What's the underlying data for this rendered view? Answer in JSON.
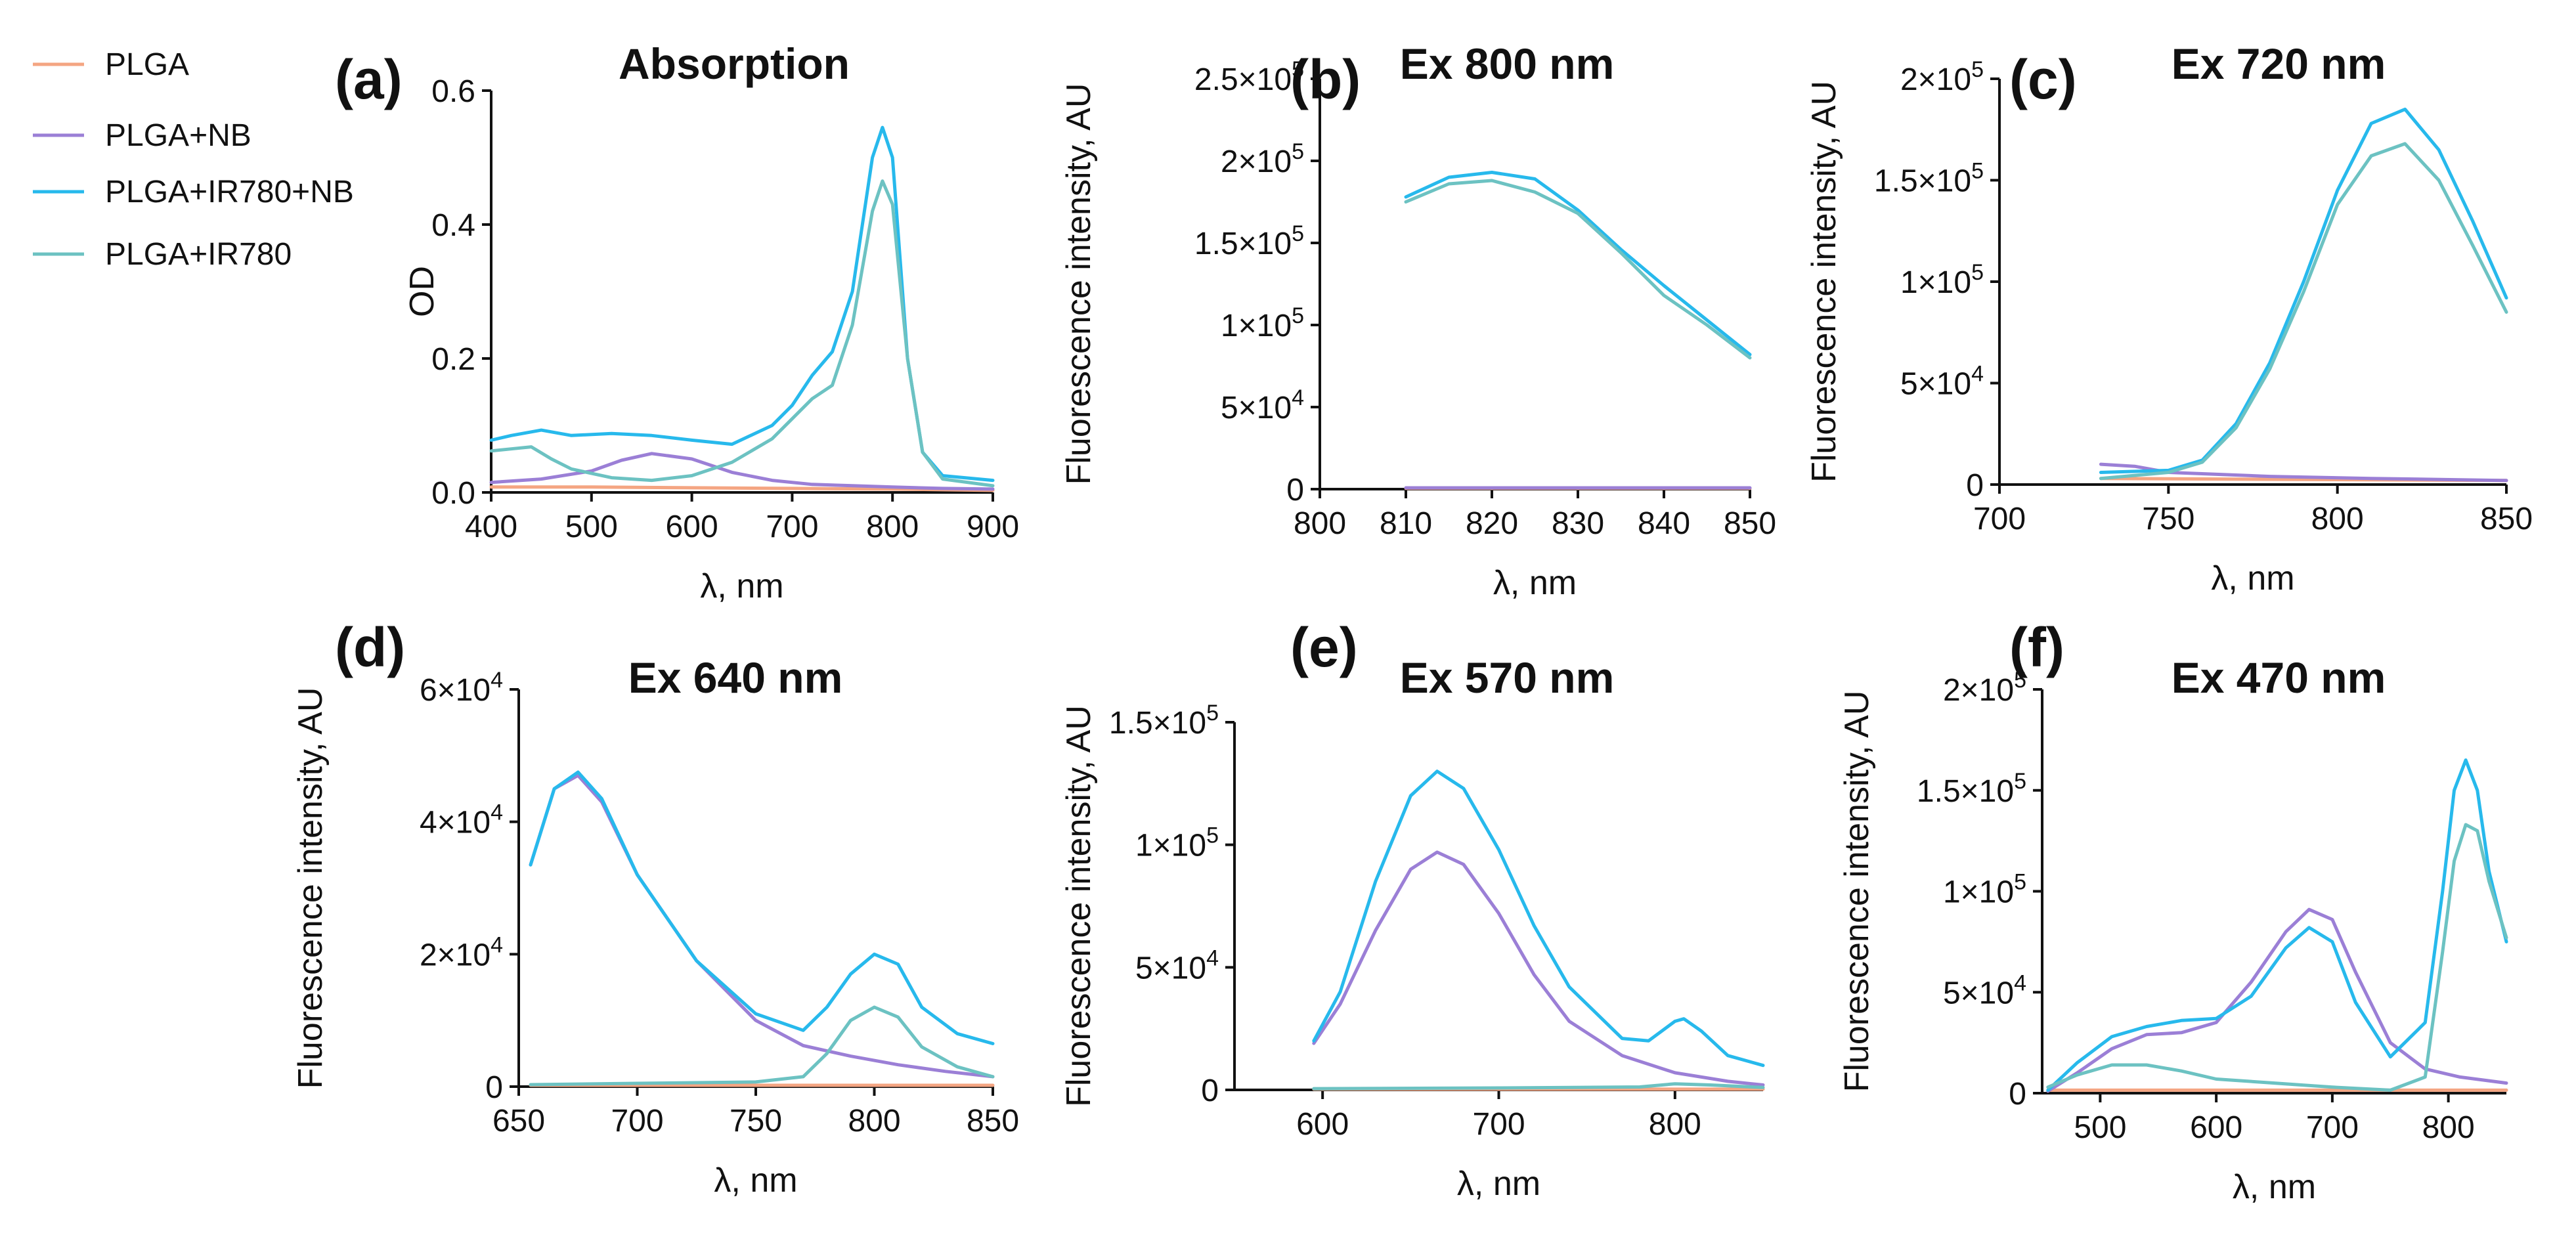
{
  "legend": [
    {
      "label": "PLGA",
      "color": "#f4a582"
    },
    {
      "label": "PLGA+NB",
      "color": "#9b7fd6"
    },
    {
      "label": "PLGA+IR780+NB",
      "color": "#27b9ec"
    },
    {
      "label": "PLGA+IR780",
      "color": "#6cc2c2"
    }
  ],
  "chart_data": [
    {
      "id": "a",
      "panel_label": "(a)",
      "title": "Absorption",
      "type": "line",
      "xlabel": "λ, nm",
      "ylabel": "OD",
      "xlim": [
        400,
        900
      ],
      "ylim": [
        0,
        0.6
      ],
      "xticks": [
        "400",
        "500",
        "600",
        "700",
        "800",
        "900"
      ],
      "yticks": [
        "0.0",
        "0.2",
        "0.4",
        "0.6"
      ],
      "series": [
        {
          "name": "PLGA",
          "x": [
            400,
            500,
            600,
            700,
            800,
            900
          ],
          "y": [
            0.008,
            0.008,
            0.007,
            0.006,
            0.005,
            0.003
          ]
        },
        {
          "name": "PLGA+NB",
          "x": [
            400,
            450,
            500,
            530,
            560,
            600,
            640,
            680,
            720,
            760,
            800,
            850,
            900
          ],
          "y": [
            0.015,
            0.02,
            0.032,
            0.048,
            0.058,
            0.05,
            0.03,
            0.018,
            0.012,
            0.01,
            0.008,
            0.006,
            0.005
          ]
        },
        {
          "name": "PLGA+IR780+NB",
          "x": [
            400,
            420,
            450,
            480,
            520,
            560,
            600,
            640,
            680,
            700,
            720,
            740,
            760,
            780,
            790,
            800,
            815,
            830,
            850,
            900
          ],
          "y": [
            0.078,
            0.085,
            0.093,
            0.085,
            0.088,
            0.085,
            0.078,
            0.072,
            0.1,
            0.13,
            0.175,
            0.21,
            0.3,
            0.5,
            0.545,
            0.5,
            0.2,
            0.06,
            0.025,
            0.018
          ]
        },
        {
          "name": "PLGA+IR780",
          "x": [
            400,
            420,
            440,
            460,
            480,
            520,
            560,
            600,
            640,
            680,
            700,
            720,
            740,
            760,
            780,
            790,
            800,
            815,
            830,
            850,
            900
          ],
          "y": [
            0.062,
            0.065,
            0.068,
            0.05,
            0.035,
            0.022,
            0.018,
            0.025,
            0.045,
            0.08,
            0.11,
            0.14,
            0.16,
            0.25,
            0.42,
            0.465,
            0.43,
            0.2,
            0.06,
            0.02,
            0.01
          ]
        }
      ]
    },
    {
      "id": "b",
      "panel_label": "(b)",
      "title": "Ex 800 nm",
      "type": "line",
      "xlabel": "λ, nm",
      "ylabel": "Fluorescence intensity, AU",
      "xlim": [
        800,
        850
      ],
      "ylim": [
        0,
        250000
      ],
      "xticks": [
        "800",
        "810",
        "820",
        "830",
        "840",
        "850"
      ],
      "yticks": [
        "0",
        "5×10",
        "1×10",
        "1.5×10",
        "2×10",
        "2.5×10"
      ],
      "ytick_exponents": [
        "",
        "4",
        "5",
        "5",
        "5",
        "5"
      ],
      "series": [
        {
          "name": "PLGA",
          "x": [
            810,
            850
          ],
          "y": [
            500,
            500
          ]
        },
        {
          "name": "PLGA+NB",
          "x": [
            810,
            850
          ],
          "y": [
            800,
            800
          ]
        },
        {
          "name": "PLGA+IR780+NB",
          "x": [
            810,
            815,
            820,
            825,
            830,
            835,
            840,
            845,
            850
          ],
          "y": [
            178000,
            190000,
            193000,
            189000,
            170000,
            146000,
            124000,
            103000,
            82000
          ]
        },
        {
          "name": "PLGA+IR780",
          "x": [
            810,
            815,
            820,
            825,
            830,
            835,
            840,
            845,
            850
          ],
          "y": [
            175000,
            186000,
            188000,
            181000,
            168000,
            144000,
            118000,
            100000,
            80000
          ]
        }
      ]
    },
    {
      "id": "c",
      "panel_label": "(c)",
      "title": "Ex 720 nm",
      "type": "line",
      "xlabel": "λ, nm",
      "ylabel": "Fluorescence intensity, AU",
      "xlim": [
        700,
        850
      ],
      "ylim": [
        0,
        200000
      ],
      "xticks": [
        "700",
        "750",
        "800",
        "850"
      ],
      "yticks": [
        "0",
        "5×10",
        "1×10",
        "1.5×10",
        "2×10"
      ],
      "ytick_exponents": [
        "",
        "4",
        "5",
        "5",
        "5"
      ],
      "series": [
        {
          "name": "PLGA",
          "x": [
            730,
            850
          ],
          "y": [
            3000,
            2000
          ]
        },
        {
          "name": "PLGA+NB",
          "x": [
            730,
            740,
            750,
            780,
            810,
            850
          ],
          "y": [
            10000,
            9000,
            6000,
            4000,
            3000,
            2000
          ]
        },
        {
          "name": "PLGA+IR780+NB",
          "x": [
            730,
            750,
            760,
            770,
            780,
            790,
            800,
            810,
            820,
            830,
            840,
            850
          ],
          "y": [
            6000,
            7000,
            12000,
            30000,
            60000,
            100000,
            145000,
            178000,
            185000,
            165000,
            130000,
            92000
          ]
        },
        {
          "name": "PLGA+IR780",
          "x": [
            730,
            750,
            760,
            770,
            780,
            790,
            800,
            810,
            820,
            830,
            840,
            850
          ],
          "y": [
            3000,
            6000,
            11000,
            28000,
            57000,
            95000,
            138000,
            162000,
            168000,
            150000,
            118000,
            85000
          ]
        }
      ]
    },
    {
      "id": "d",
      "panel_label": "(d)",
      "title": "Ex 640 nm",
      "type": "line",
      "xlabel": "λ, nm",
      "ylabel": "Fluorescence intensity, AU",
      "xlim": [
        650,
        850
      ],
      "ylim": [
        0,
        60000
      ],
      "xticks": [
        "650",
        "700",
        "750",
        "800",
        "850"
      ],
      "yticks": [
        "0",
        "2×10",
        "4×10",
        "6×10"
      ],
      "ytick_exponents": [
        "",
        "4",
        "4",
        "4"
      ],
      "series": [
        {
          "name": "PLGA",
          "x": [
            655,
            850
          ],
          "y": [
            200,
            200
          ]
        },
        {
          "name": "PLGA+NB",
          "x": [
            655,
            665,
            675,
            685,
            700,
            725,
            750,
            770,
            790,
            810,
            830,
            850
          ],
          "y": [
            33500,
            45000,
            47000,
            43000,
            32000,
            19000,
            10000,
            6200,
            4600,
            3300,
            2300,
            1500
          ]
        },
        {
          "name": "PLGA+IR780+NB",
          "x": [
            655,
            665,
            675,
            685,
            700,
            725,
            750,
            770,
            780,
            790,
            800,
            810,
            820,
            835,
            850
          ],
          "y": [
            33500,
            45000,
            47500,
            43500,
            32000,
            19000,
            11000,
            8500,
            12000,
            17000,
            20000,
            18500,
            12000,
            8000,
            6500
          ]
        },
        {
          "name": "PLGA+IR780",
          "x": [
            655,
            700,
            750,
            770,
            780,
            790,
            800,
            810,
            820,
            835,
            850
          ],
          "y": [
            300,
            500,
            700,
            1500,
            5000,
            10000,
            12000,
            10500,
            6000,
            3000,
            1500
          ]
        }
      ]
    },
    {
      "id": "e",
      "panel_label": "(e)",
      "title": "Ex 570 nm",
      "type": "line",
      "xlabel": "λ, nm",
      "ylabel": "Fluorescence intensity, AU",
      "xlim": [
        550,
        850
      ],
      "ylim": [
        0,
        150000
      ],
      "xticks": [
        "600",
        "700",
        "800"
      ],
      "yticks": [
        "0",
        "5×10",
        "1×10",
        "1.5×10"
      ],
      "ytick_exponents": [
        "",
        "4",
        "5",
        "5"
      ],
      "series": [
        {
          "name": "PLGA",
          "x": [
            595,
            850
          ],
          "y": [
            300,
            300
          ]
        },
        {
          "name": "PLGA+NB",
          "x": [
            595,
            610,
            630,
            650,
            665,
            680,
            700,
            720,
            740,
            770,
            800,
            830,
            850
          ],
          "y": [
            19000,
            35000,
            65000,
            90000,
            97000,
            92000,
            72000,
            47000,
            28000,
            14000,
            7000,
            3500,
            2000
          ]
        },
        {
          "name": "PLGA+IR780+NB",
          "x": [
            595,
            610,
            630,
            650,
            665,
            680,
            700,
            720,
            740,
            770,
            785,
            800,
            805,
            815,
            830,
            850
          ],
          "y": [
            20000,
            40000,
            85000,
            120000,
            130000,
            123000,
            98000,
            67000,
            42000,
            21000,
            20000,
            28000,
            29000,
            24000,
            14000,
            10000
          ]
        },
        {
          "name": "PLGA+IR780",
          "x": [
            595,
            700,
            780,
            800,
            820,
            850
          ],
          "y": [
            500,
            800,
            1200,
            2500,
            2000,
            1000
          ]
        }
      ]
    },
    {
      "id": "f",
      "panel_label": "(f)",
      "title": "Ex 470 nm",
      "type": "line",
      "xlabel": "λ, nm",
      "ylabel": "Fluorescence intensity, AU",
      "xlim": [
        450,
        850
      ],
      "ylim": [
        0,
        200000
      ],
      "xticks": [
        "500",
        "600",
        "700",
        "800"
      ],
      "yticks": [
        "0",
        "5×10",
        "1×10",
        "1.5×10",
        "2×10"
      ],
      "ytick_exponents": [
        "",
        "4",
        "5",
        "5",
        "5"
      ],
      "series": [
        {
          "name": "PLGA",
          "x": [
            455,
            850
          ],
          "y": [
            1500,
            1500
          ]
        },
        {
          "name": "PLGA+NB",
          "x": [
            455,
            480,
            510,
            540,
            570,
            600,
            630,
            660,
            680,
            700,
            720,
            750,
            780,
            810,
            850
          ],
          "y": [
            1000,
            10000,
            22000,
            29000,
            30000,
            35000,
            55000,
            80000,
            91000,
            86000,
            60000,
            25000,
            12000,
            8000,
            5000
          ]
        },
        {
          "name": "PLGA+IR780+NB",
          "x": [
            455,
            480,
            510,
            540,
            570,
            600,
            630,
            660,
            680,
            700,
            720,
            750,
            780,
            795,
            805,
            815,
            825,
            835,
            850
          ],
          "y": [
            1500,
            15000,
            28000,
            33000,
            36000,
            37000,
            48000,
            72000,
            82000,
            75000,
            45000,
            18000,
            35000,
            100000,
            150000,
            165000,
            150000,
            110000,
            75000
          ]
        },
        {
          "name": "PLGA+IR780",
          "x": [
            455,
            480,
            510,
            540,
            570,
            600,
            650,
            700,
            750,
            780,
            795,
            805,
            815,
            825,
            835,
            850
          ],
          "y": [
            3000,
            9000,
            14000,
            14000,
            11000,
            7000,
            5000,
            3000,
            1500,
            8000,
            70000,
            115000,
            133000,
            130000,
            105000,
            77000
          ]
        }
      ]
    }
  ]
}
